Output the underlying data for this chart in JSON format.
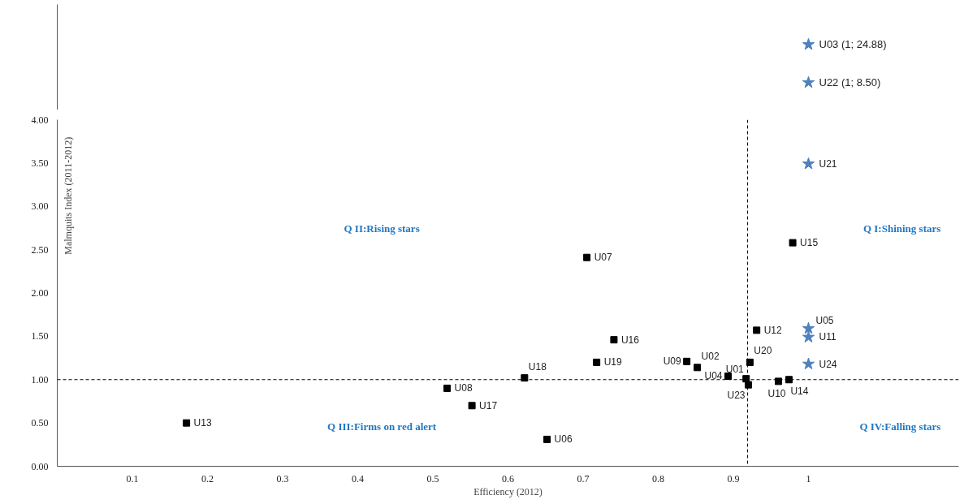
{
  "chart_data": [
    {
      "type": "other",
      "series": [
        {
          "color": "#4f81bd",
          "marker": "star",
          "values": [
            24.88,
            8.5
          ],
          "value_labels": [
            "U03 (1; 24.88)",
            "U22 (1; 8.50)"
          ]
        }
      ]
    },
    {
      "type": "scatter",
      "xlabel": "Efficiency (2012)",
      "ylabel": "Malmquits Index (2011-2012)",
      "xlim": [
        0,
        1.2
      ],
      "ylim": [
        0,
        4
      ],
      "xticks": [
        0.1,
        0.2,
        0.3,
        0.4,
        0.5,
        0.6,
        0.7,
        0.8,
        0.9,
        1
      ],
      "yticks": [
        {
          "value": 0,
          "label": "0.00"
        },
        {
          "value": 0.5,
          "label": "0.50"
        },
        {
          "value": 1,
          "label": "1.00"
        },
        {
          "value": 1.5,
          "label": "1.50"
        },
        {
          "value": 2,
          "label": "2.00"
        },
        {
          "value": 2.5,
          "label": "2.50"
        },
        {
          "value": 3,
          "label": "3.00"
        },
        {
          "value": 3.5,
          "label": "3.50"
        },
        {
          "value": 4,
          "label": "4.00"
        }
      ],
      "ref_lines": [
        {
          "axis": "x",
          "value": 0.919,
          "label": null,
          "color": "#000000",
          "line_style": "dashed"
        },
        {
          "axis": "y",
          "value": 1,
          "label": null,
          "color": "#000000",
          "line_style": "dashed"
        }
      ],
      "annotations": [
        "Q II:Rising stars",
        "Q I:Shining stars",
        "Q III:Firms on red alert",
        "Q IV:Falling stars"
      ],
      "series": [
        {
          "color": "#000000",
          "marker": "square",
          "x": [
            0.172,
            0.519,
            0.552,
            0.622,
            0.652,
            0.705,
            0.718,
            0.741,
            0.838,
            0.852,
            0.893,
            0.917,
            0.92,
            0.922,
            0.931,
            0.96,
            0.974,
            0.979
          ],
          "values": [
            0.5,
            0.9,
            0.7,
            1.02,
            0.31,
            2.41,
            1.2,
            1.46,
            1.21,
            1.14,
            1.04,
            1.01,
            0.94,
            1.2,
            1.57,
            0.98,
            1.0,
            2.58
          ],
          "value_labels": [
            "U13",
            "U08",
            "U17",
            "U18",
            "U06",
            "U07",
            "U19",
            "U16",
            "U09",
            "U02",
            "U04",
            "U01",
            "U23",
            "U20",
            "U12",
            "U10",
            "U14",
            "U15"
          ]
        },
        {
          "color": "#4f81bd",
          "marker": "star",
          "x": [
            1,
            1,
            1,
            1
          ],
          "values": [
            3.49,
            1.59,
            1.49,
            1.18
          ],
          "value_labels": [
            "U21",
            "U05",
            "U11",
            "U24"
          ]
        }
      ]
    }
  ]
}
